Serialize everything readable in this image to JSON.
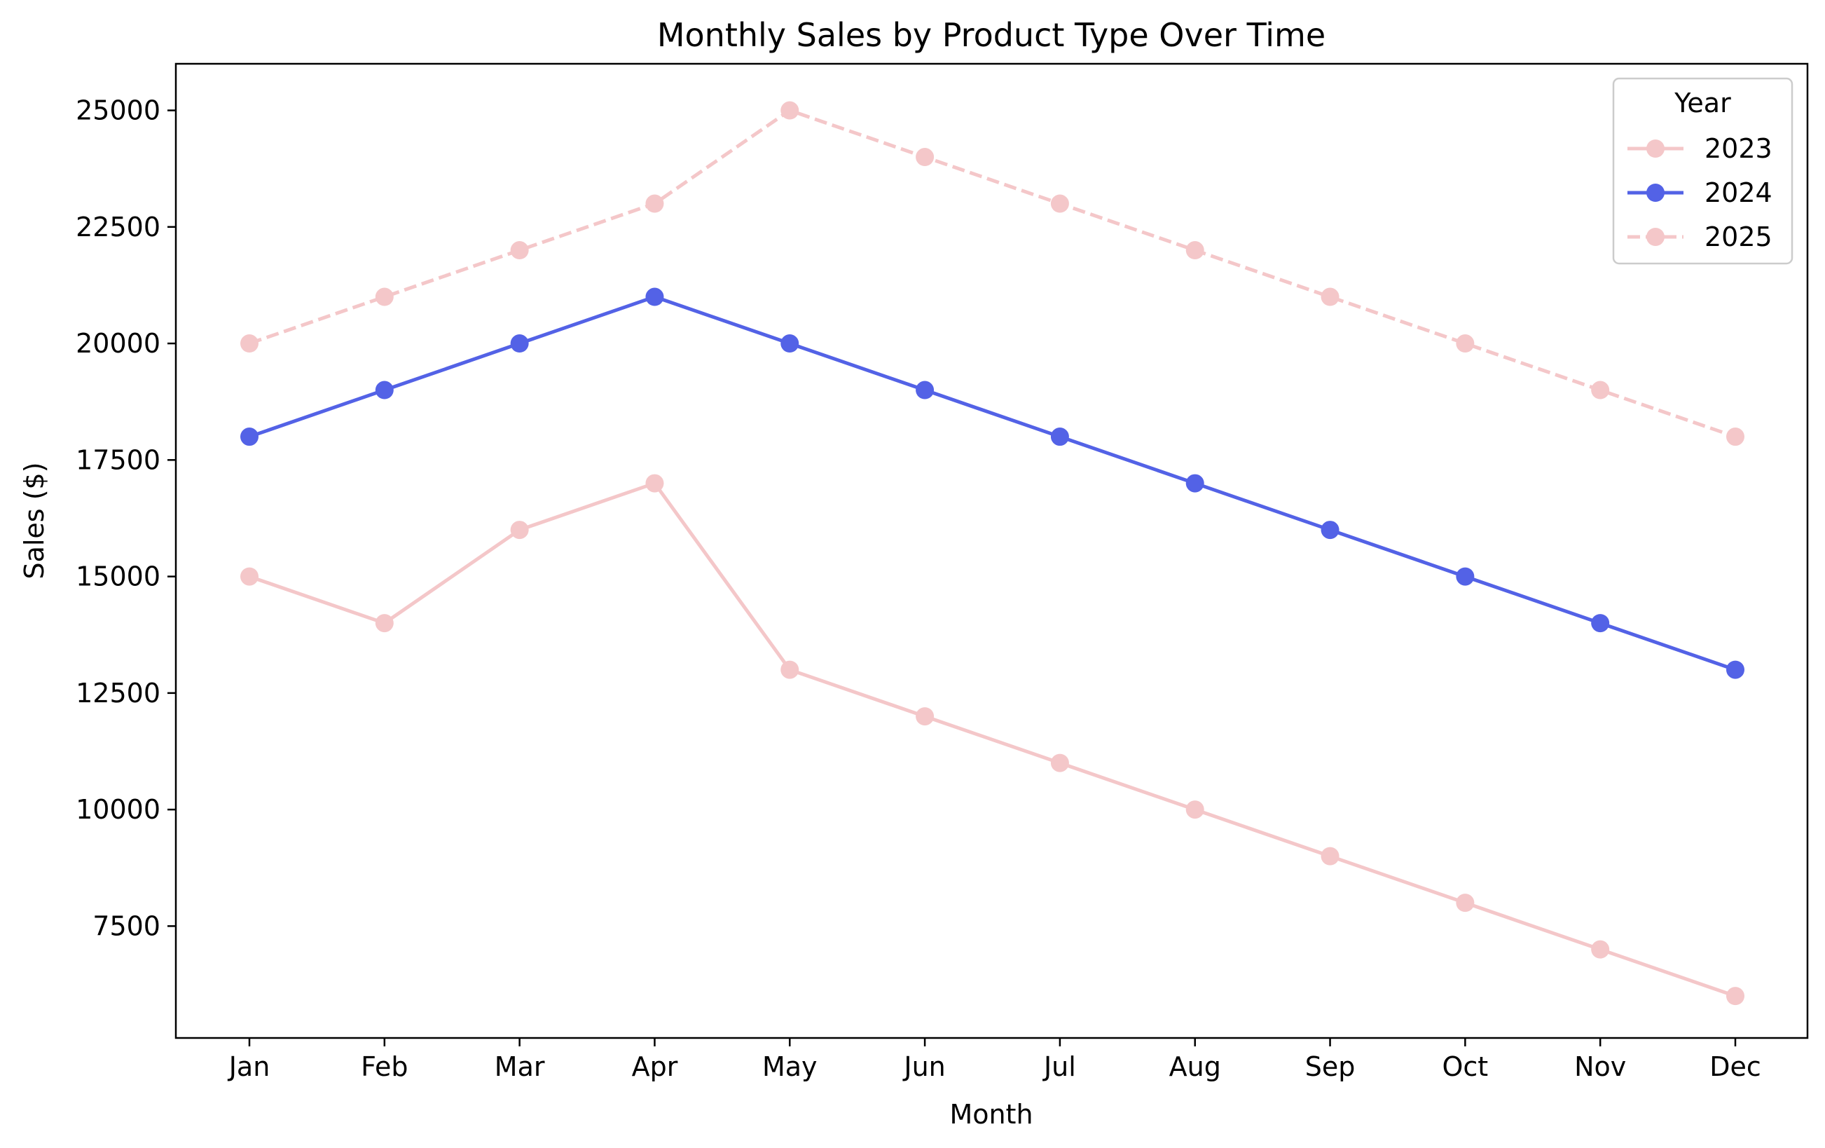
{
  "chart_data": {
    "type": "line",
    "title": "Monthly Sales by Product Type Over Time",
    "xlabel": "Month",
    "ylabel": "Sales ($)",
    "categories": [
      "Jan",
      "Feb",
      "Mar",
      "Apr",
      "May",
      "Jun",
      "Jul",
      "Aug",
      "Sep",
      "Oct",
      "Nov",
      "Dec"
    ],
    "ylim": [
      5100,
      26000
    ],
    "yticks": [
      7500,
      10000,
      12500,
      15000,
      17500,
      20000,
      22500,
      25000
    ],
    "ytick_labels": [
      "7500",
      "10000",
      "12500",
      "15000",
      "17500",
      "20000",
      "22500",
      "25000"
    ],
    "grid": false,
    "legend": {
      "title": "Year",
      "placement": "top-right"
    },
    "series": [
      {
        "name": "2023",
        "color": "#f4c7c9",
        "dash": "solid",
        "marker": "circle",
        "values": [
          15000,
          14000,
          16000,
          17000,
          13000,
          12000,
          11000,
          10000,
          9000,
          8000,
          7000,
          6000
        ]
      },
      {
        "name": "2024",
        "color": "#5362e6",
        "dash": "solid",
        "marker": "circle",
        "values": [
          18000,
          19000,
          20000,
          21000,
          20000,
          19000,
          18000,
          17000,
          16000,
          15000,
          14000,
          13000
        ]
      },
      {
        "name": "2025",
        "color": "#f4c7c9",
        "dash": "dashed",
        "marker": "circle",
        "values": [
          20000,
          21000,
          22000,
          23000,
          25000,
          24000,
          23000,
          22000,
          21000,
          20000,
          19000,
          18000
        ]
      }
    ]
  }
}
